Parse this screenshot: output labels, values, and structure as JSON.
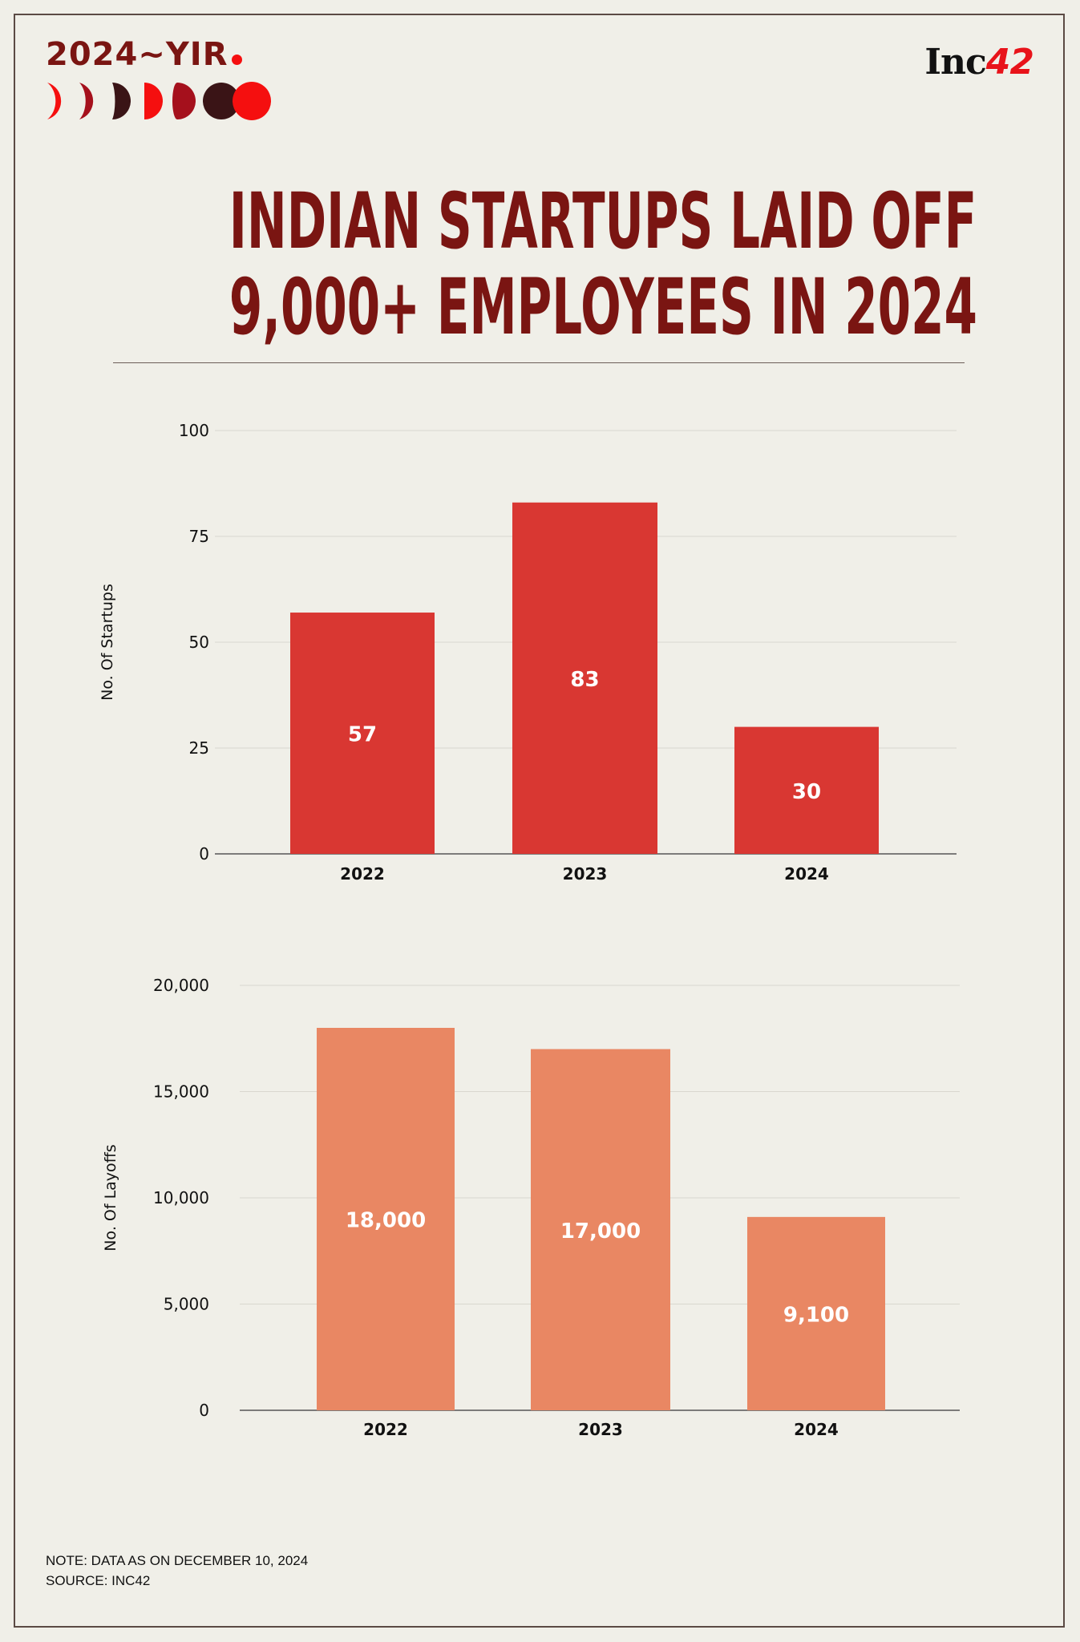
{
  "header": {
    "badge_text": "2024~YIR",
    "brand": "Inc42",
    "brand_primary": "Inc",
    "brand_number": "42"
  },
  "title": {
    "line1": "INDIAN STARTUPS LAID OFF",
    "line2": "9,000+ EMPLOYEES IN 2024"
  },
  "colors": {
    "background": "#f0efe8",
    "title": "#7a1512",
    "startups_bar": "#d93732",
    "layoffs_bar": "#e98763"
  },
  "chart_data": [
    {
      "type": "bar",
      "categories": [
        "2022",
        "2023",
        "2024"
      ],
      "values": [
        57,
        83,
        30
      ],
      "value_labels": [
        "57",
        "83",
        "30"
      ],
      "ylabel": "No. Of Startups",
      "ylim": [
        0,
        100
      ],
      "yticks": [
        0,
        25,
        50,
        75,
        100
      ],
      "ytick_labels": [
        "0",
        "25",
        "50",
        "75",
        "100"
      ],
      "grid": true
    },
    {
      "type": "bar",
      "categories": [
        "2022",
        "2023",
        "2024"
      ],
      "values": [
        18000,
        17000,
        9100
      ],
      "value_labels": [
        "18,000",
        "17,000",
        "9,100"
      ],
      "ylabel": "No. Of Layoffs",
      "ylim": [
        0,
        20000
      ],
      "yticks": [
        0,
        5000,
        10000,
        15000,
        20000
      ],
      "ytick_labels": [
        "0",
        "5,000",
        "10,000",
        "15,000",
        "20,000"
      ],
      "grid": true
    }
  ],
  "footer": {
    "note": "NOTE: DATA AS ON DECEMBER 10, 2024",
    "source": "SOURCE: INC42"
  }
}
